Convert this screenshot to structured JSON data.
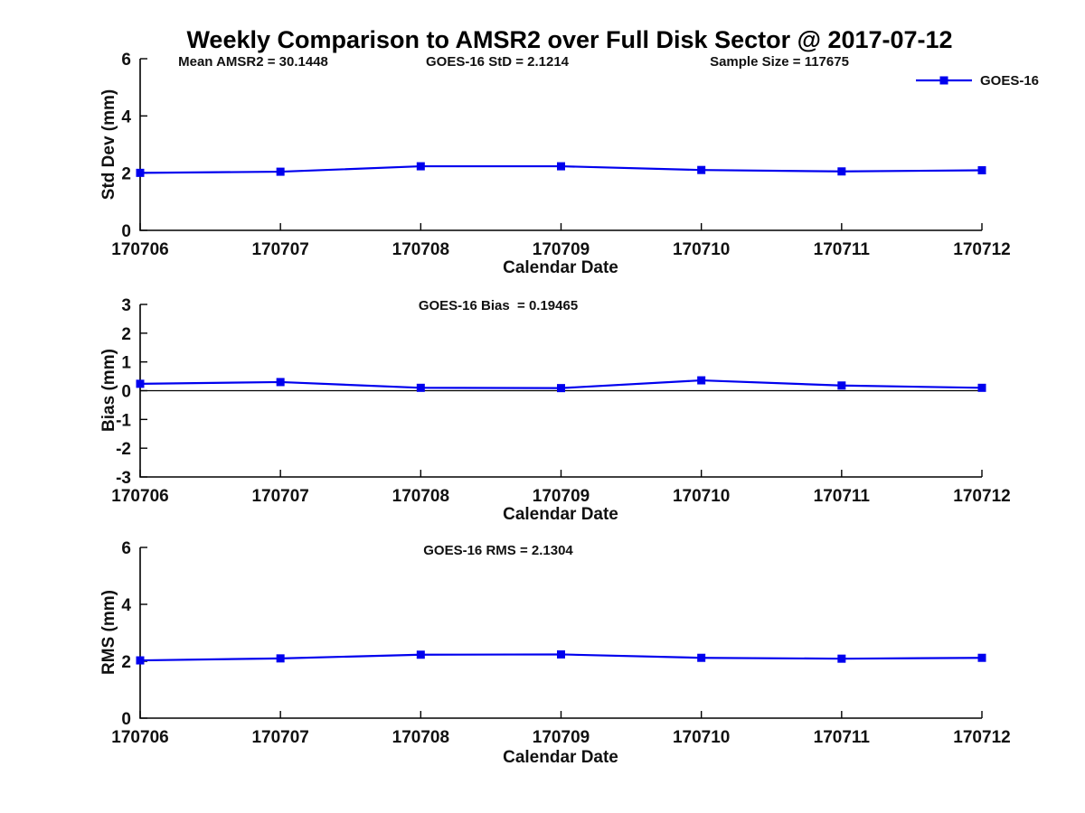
{
  "title": "Weekly Comparison to AMSR2 over Full Disk Sector @ 2017-07-12",
  "legend": {
    "label": "GOES-16",
    "color": "#0000ee"
  },
  "annotations": [
    {
      "text": "Mean AMSR2 = 30.1448"
    },
    {
      "text": "GOES-16 StD = 2.1214"
    },
    {
      "text": "Sample Size = 117675"
    }
  ],
  "chart_data": [
    {
      "type": "line",
      "name": "std-dev",
      "categories": [
        "170706",
        "170707",
        "170708",
        "170709",
        "170710",
        "170711",
        "170712"
      ],
      "series": [
        {
          "name": "GOES-16",
          "color": "#0000ee",
          "marker": "square",
          "values": [
            2.01,
            2.05,
            2.24,
            2.24,
            2.11,
            2.06,
            2.1
          ]
        }
      ],
      "inner_title": "",
      "xlabel": "Calendar Date",
      "ylabel": "Std Dev (mm)",
      "ylim": [
        0,
        6
      ],
      "yticks": [
        0,
        2,
        4,
        6
      ],
      "zero_line": false,
      "grid": false,
      "legend_position": "top-right-outside"
    },
    {
      "type": "line",
      "name": "bias",
      "categories": [
        "170706",
        "170707",
        "170708",
        "170709",
        "170710",
        "170711",
        "170712"
      ],
      "series": [
        {
          "name": "GOES-16",
          "color": "#0000ee",
          "marker": "square",
          "values": [
            0.24,
            0.3,
            0.1,
            0.09,
            0.36,
            0.18,
            0.1
          ]
        }
      ],
      "inner_title": "GOES-16 Bias  = 0.19465",
      "xlabel": "Calendar Date",
      "ylabel": "Bias (mm)",
      "ylim": [
        -3,
        3
      ],
      "yticks": [
        -3,
        -2,
        -1,
        0,
        1,
        2,
        3
      ],
      "zero_line": true,
      "grid": false
    },
    {
      "type": "line",
      "name": "rms",
      "categories": [
        "170706",
        "170707",
        "170708",
        "170709",
        "170710",
        "170711",
        "170712"
      ],
      "series": [
        {
          "name": "GOES-16",
          "color": "#0000ee",
          "marker": "square",
          "values": [
            2.03,
            2.1,
            2.23,
            2.24,
            2.12,
            2.09,
            2.12
          ]
        }
      ],
      "inner_title": "GOES-16 RMS = 2.1304",
      "xlabel": "Calendar Date",
      "ylabel": "RMS (mm)",
      "ylim": [
        0,
        6
      ],
      "yticks": [
        0,
        2,
        4,
        6
      ],
      "zero_line": false,
      "grid": false
    }
  ]
}
